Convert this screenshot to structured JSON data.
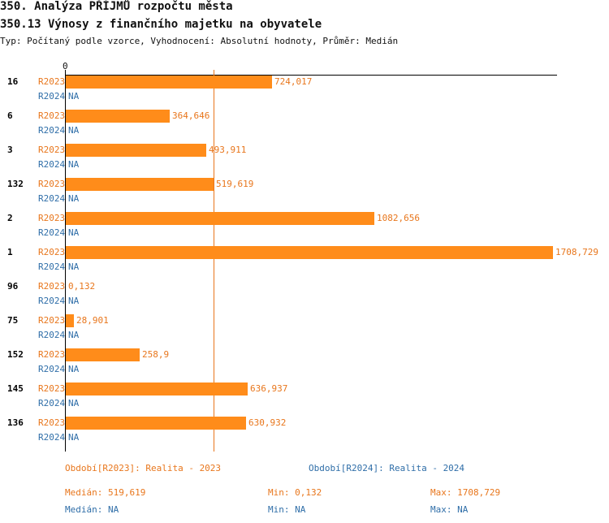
{
  "header": {
    "title": "350. Analýza PŘÍJMŮ rozpočtu města",
    "subtitle": "350.13 Výnosy z finančního majetku na obyvatele",
    "type_line": "Typ: Počítaný podle vzorce, Vyhodnocení: Absolutní hodnoty, Průměr: Medián"
  },
  "colors": {
    "r2023": "#ff8c1a",
    "r2023_text": "#e8761c",
    "r2024_text": "#2f6ea8",
    "median_line": "#e8761c"
  },
  "chart_data": {
    "type": "bar",
    "orientation": "horizontal",
    "axis_zero_label": "0",
    "xlim": [
      0,
      1708.729
    ],
    "median_value": 519.619,
    "categories": [
      "16",
      "6",
      "3",
      "132",
      "2",
      "1",
      "96",
      "75",
      "152",
      "145",
      "136"
    ],
    "series": [
      {
        "name": "R2023",
        "values": [
          724.017,
          364.646,
          493.911,
          519.619,
          1082.656,
          1708.729,
          0.132,
          28.901,
          258.9,
          636.937,
          630.932
        ],
        "labels": [
          "724,017",
          "364,646",
          "493,911",
          "519,619",
          "1082,656",
          "1708,729",
          "0,132",
          "28,901",
          "258,9",
          "636,937",
          "630,932"
        ]
      },
      {
        "name": "R2024",
        "values": [
          null,
          null,
          null,
          null,
          null,
          null,
          null,
          null,
          null,
          null,
          null
        ],
        "labels": [
          "NA",
          "NA",
          "NA",
          "NA",
          "NA",
          "NA",
          "NA",
          "NA",
          "NA",
          "NA",
          "NA"
        ]
      }
    ]
  },
  "legend": {
    "r2023": "Období[R2023]: Realita - 2023",
    "r2024": "Období[R2024]: Realita - 2024"
  },
  "stats": {
    "r2023": {
      "median": "Medián: 519,619",
      "min": "Min: 0,132",
      "max": "Max: 1708,729"
    },
    "r2024": {
      "median": "Medián: NA",
      "min": "Min: NA",
      "max": "Max: NA"
    }
  }
}
